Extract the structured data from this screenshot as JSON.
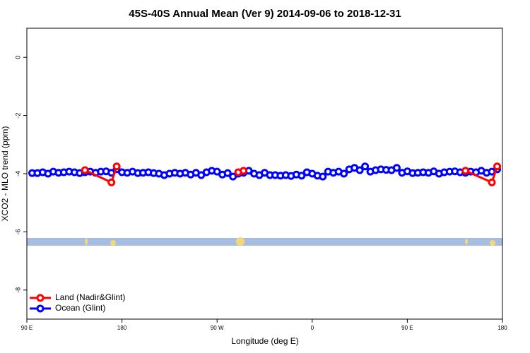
{
  "chart_data": {
    "type": "line",
    "title": "45S-40S Annual Mean (Ver 9)   2014-09-06 to 2018-12-31",
    "x_label": "Longitude (deg E)",
    "y_label": "XCO2 - MLO trend (ppm)",
    "xlim": [
      90,
      540
    ],
    "ylim": [
      -9,
      1
    ],
    "xticks": [
      {
        "value": 90,
        "label": "90 E"
      },
      180,
      {
        "value": 270,
        "label": "90 W"
      },
      {
        "value": 360,
        "label": "0"
      },
      {
        "value": 450,
        "label": "90 E"
      },
      {
        "value": 540,
        "label": "180"
      }
    ],
    "yticks": [
      0,
      -2,
      -4,
      -6,
      -8
    ],
    "legend_position": "bottom-left",
    "series": [
      {
        "name": "Ocean (Glint)",
        "color": "#0000ff",
        "x": [
          95,
          100,
          105,
          110,
          115,
          120,
          125,
          130,
          135,
          140,
          145,
          150,
          155,
          160,
          165,
          170,
          175,
          180,
          185,
          190,
          195,
          200,
          205,
          210,
          215,
          220,
          225,
          230,
          235,
          240,
          245,
          250,
          255,
          260,
          265,
          270,
          275,
          280,
          285,
          290,
          295,
          300,
          305,
          310,
          315,
          320,
          325,
          330,
          335,
          340,
          345,
          350,
          355,
          360,
          365,
          370,
          375,
          380,
          385,
          390,
          395,
          400,
          405,
          410,
          415,
          420,
          425,
          430,
          435,
          440,
          445,
          450,
          455,
          460,
          465,
          470,
          475,
          480,
          485,
          490,
          495,
          500,
          505,
          510,
          515,
          520,
          525,
          530,
          535
        ],
        "values": [
          -3.98,
          -3.98,
          -3.95,
          -4.0,
          -3.93,
          -3.97,
          -3.95,
          -3.93,
          -3.95,
          -3.98,
          -3.95,
          -3.93,
          -3.97,
          -3.93,
          -3.92,
          -3.97,
          -3.85,
          -3.95,
          -3.97,
          -3.93,
          -3.98,
          -3.97,
          -3.95,
          -3.98,
          -4.0,
          -4.05,
          -4.0,
          -3.97,
          -4.0,
          -3.97,
          -4.03,
          -3.97,
          -4.05,
          -3.95,
          -3.9,
          -3.93,
          -4.03,
          -3.98,
          -4.1,
          -4.0,
          -3.97,
          -3.9,
          -4.0,
          -4.05,
          -3.97,
          -4.05,
          -4.05,
          -4.07,
          -4.05,
          -4.08,
          -4.03,
          -4.07,
          -3.95,
          -4.0,
          -4.07,
          -4.1,
          -3.93,
          -3.97,
          -3.93,
          -4.0,
          -3.85,
          -3.8,
          -3.88,
          -3.75,
          -3.93,
          -3.88,
          -3.85,
          -3.87,
          -3.88,
          -3.8,
          -3.97,
          -3.92,
          -3.98,
          -3.97,
          -3.95,
          -3.97,
          -3.92,
          -4.0,
          -3.95,
          -3.93,
          -3.92,
          -3.95,
          -3.97,
          -3.93,
          -3.95,
          -3.9,
          -3.97,
          -3.93,
          -3.85
        ]
      },
      {
        "name": "Land (Nadir&Glint)",
        "color": "#ff0000",
        "x": [
          145,
          170,
          175,
          null,
          290,
          295,
          null,
          505,
          530,
          535
        ],
        "values": [
          -3.88,
          -4.3,
          -3.75,
          null,
          -3.95,
          -3.9,
          null,
          -3.9,
          -4.3,
          -3.75
        ]
      }
    ]
  }
}
